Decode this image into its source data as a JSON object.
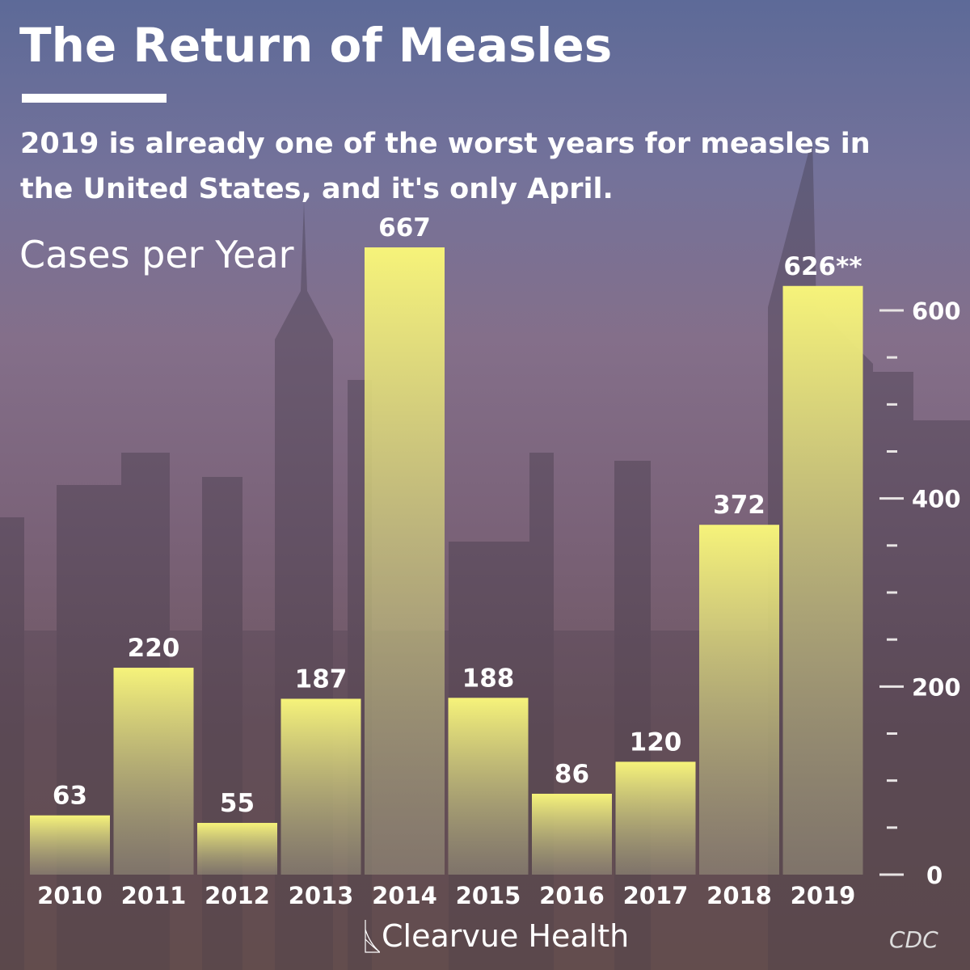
{
  "title": "The Return of Measles",
  "subtitle": "2019 is already one of the worst years for measles in the United States, and it's only April.",
  "brand": "Clearvue Health",
  "source": "CDC",
  "colors": {
    "bar_top": "#f6f37a",
    "bar_bottom": "#8a8478",
    "text": "#ffffff"
  },
  "chart_data": {
    "type": "bar",
    "title": "The Return of Measles",
    "ylabel": "Cases per Year",
    "xlabel": "",
    "categories": [
      "2010",
      "2011",
      "2012",
      "2013",
      "2014",
      "2015",
      "2016",
      "2017",
      "2018",
      "2019"
    ],
    "values": [
      63,
      220,
      55,
      187,
      667,
      188,
      86,
      120,
      372,
      626
    ],
    "data_labels": [
      "63",
      "220",
      "55",
      "187",
      "667",
      "188",
      "86",
      "120",
      "372",
      "626**"
    ],
    "ylim": [
      0,
      667
    ],
    "yticks": [
      0,
      200,
      400,
      600
    ],
    "ytick_labels": [
      "0",
      "200",
      "400",
      "600"
    ],
    "minor_tick_step": 50,
    "axis_position": "right",
    "grid": false
  }
}
